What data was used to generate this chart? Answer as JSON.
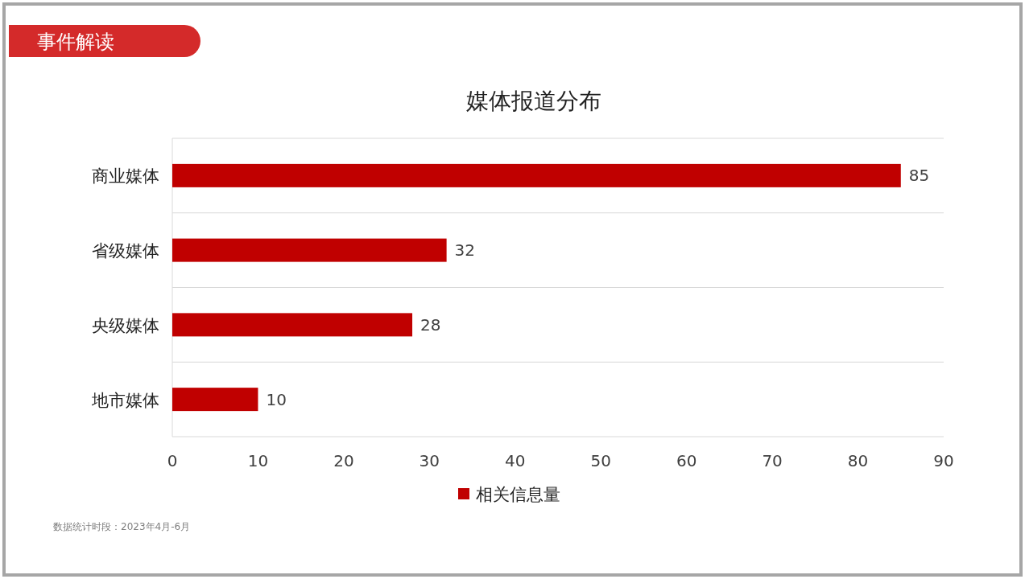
{
  "chart_data": {
    "type": "bar",
    "orientation": "horizontal",
    "title": "媒体报道分布",
    "categories": [
      "商业媒体",
      "省级媒体",
      "央级媒体",
      "地市媒体"
    ],
    "series": [
      {
        "name": "相关信息量",
        "color": "#c00000",
        "values": [
          85,
          32,
          28,
          10
        ]
      }
    ],
    "xlim": [
      0,
      90
    ],
    "xticks": [
      0,
      10,
      20,
      30,
      40,
      50,
      60,
      70,
      80,
      90
    ],
    "grid": "y",
    "legend": "bottom",
    "data_labels": true,
    "annotations": [
      "事件解读",
      "数据统计时段：2023年4月-6月"
    ]
  }
}
